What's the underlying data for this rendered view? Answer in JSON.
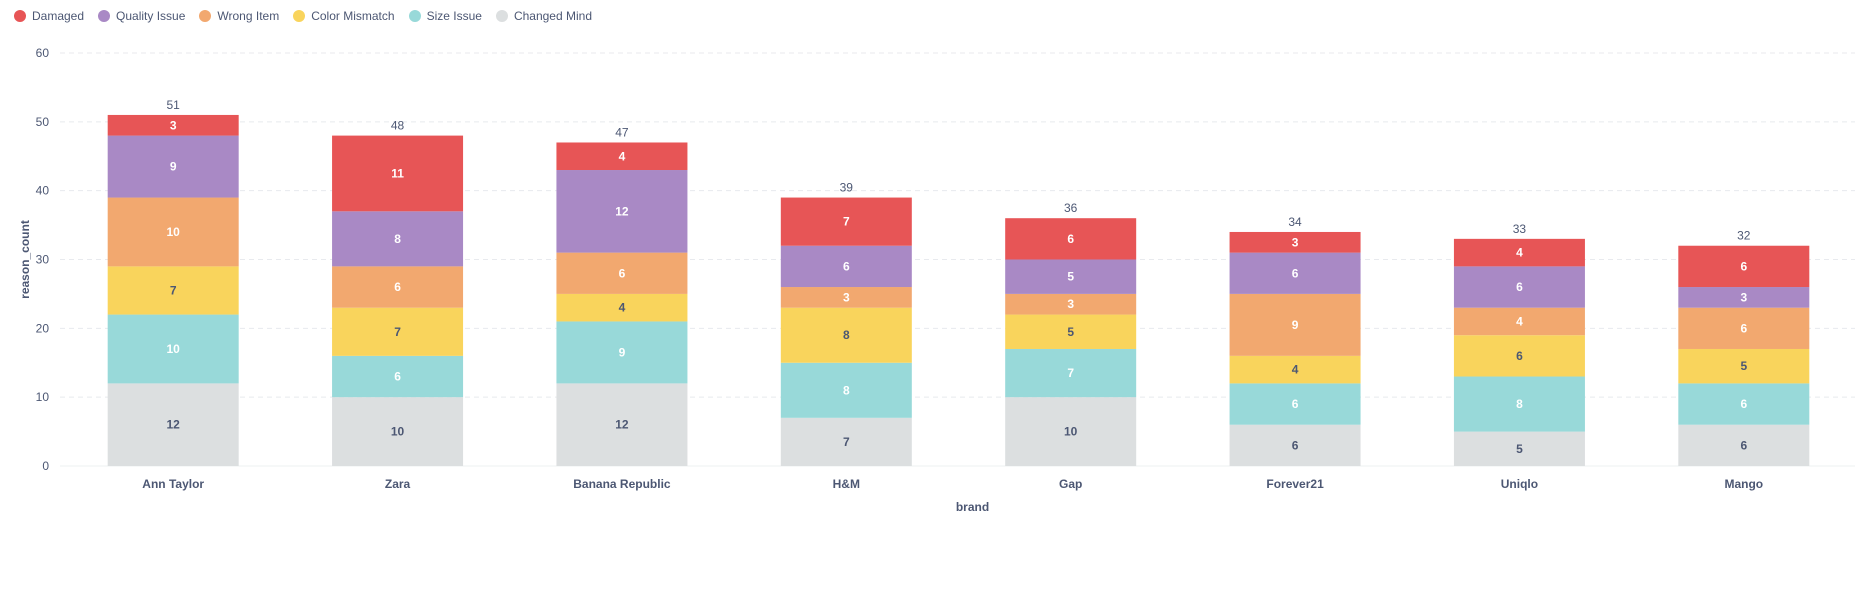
{
  "chart_data": {
    "type": "bar",
    "stacked": true,
    "title": "",
    "xlabel": "brand",
    "ylabel": "reason_count",
    "ylim": [
      0,
      60
    ],
    "yticks": [
      0,
      10,
      20,
      30,
      40,
      50,
      60
    ],
    "grid": true,
    "legend_position": "top-left",
    "categories": [
      "Ann Taylor",
      "Zara",
      "Banana Republic",
      "H&M",
      "Gap",
      "Forever21",
      "Uniqlo",
      "Mango"
    ],
    "totals": [
      51,
      48,
      47,
      39,
      36,
      34,
      33,
      32
    ],
    "series": [
      {
        "name": "Changed Mind",
        "color": "#dcdfe0",
        "label_color": "#4c5773",
        "values": [
          12,
          10,
          12,
          7,
          10,
          6,
          5,
          6
        ]
      },
      {
        "name": "Size Issue",
        "color": "#98d9d9",
        "label_color": "#ffffff",
        "values": [
          10,
          6,
          9,
          8,
          7,
          6,
          8,
          6
        ]
      },
      {
        "name": "Color Mismatch",
        "color": "#f9d45c",
        "label_color": "#4c5773",
        "values": [
          7,
          7,
          4,
          8,
          5,
          4,
          6,
          5
        ]
      },
      {
        "name": "Wrong Item",
        "color": "#f2a86f",
        "label_color": "#ffffff",
        "values": [
          10,
          6,
          6,
          3,
          3,
          9,
          4,
          6
        ]
      },
      {
        "name": "Quality Issue",
        "color": "#a989c5",
        "label_color": "#ffffff",
        "values": [
          9,
          8,
          12,
          6,
          5,
          6,
          6,
          3
        ]
      },
      {
        "name": "Damaged",
        "color": "#e75556",
        "label_color": "#ffffff",
        "values": [
          3,
          11,
          4,
          7,
          6,
          3,
          4,
          6
        ]
      }
    ],
    "legend_order": [
      "Damaged",
      "Quality Issue",
      "Wrong Item",
      "Color Mismatch",
      "Size Issue",
      "Changed Mind"
    ]
  }
}
